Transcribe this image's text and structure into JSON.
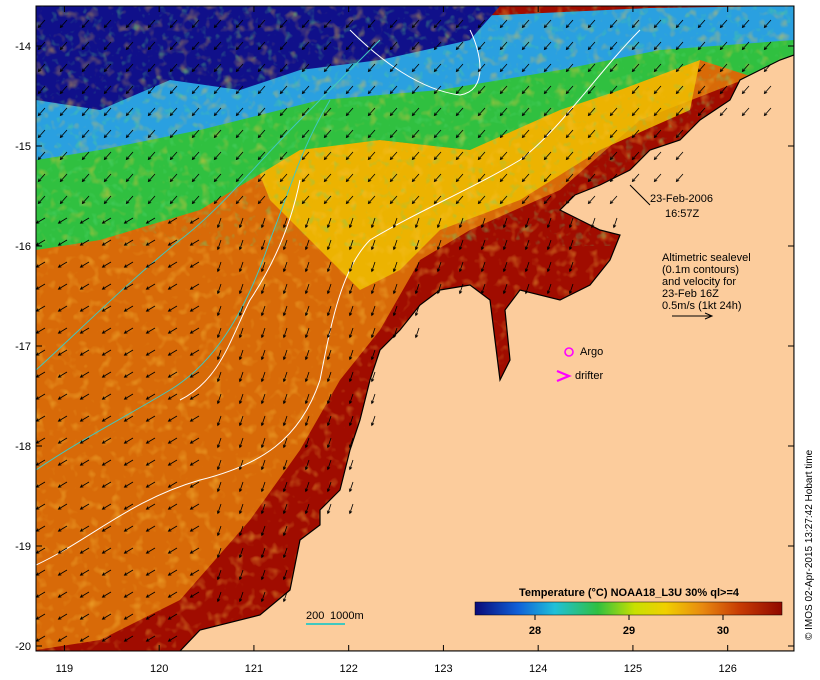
{
  "map": {
    "timestamp_date": "23-Feb-2006",
    "timestamp_time": "16:57Z",
    "altimetry_lines": [
      "Altimetric sealevel",
      "(0.1m contours)",
      "and velocity for",
      "23-Feb 16Z",
      "0.5m/s (1kt 24h)"
    ],
    "argo_label": "Argo",
    "drifter_label": "drifter",
    "depth_label": "200",
    "depth_label_2": "1000m",
    "credit": "© IMOS 02-Apr-2015 13:27:42 Hobart time",
    "lat_ticks": [
      "-14",
      "-15",
      "-16",
      "-17",
      "-18",
      "-19",
      "-20"
    ],
    "lon_ticks": [
      "119",
      "120",
      "121",
      "122",
      "123",
      "124",
      "125",
      "126"
    ],
    "extent": {
      "lon": [
        118.7,
        126.7
      ],
      "lat": [
        -20.05,
        -13.6
      ]
    }
  },
  "legend": {
    "title": "Temperature (°C) NOAA18_L3U 30% ql>=4",
    "ticks": [
      "28",
      "29",
      "30"
    ]
  },
  "colors": {
    "land": "#fccc9c",
    "warm": "#a00c00",
    "mid": "#d86a08",
    "yellow": "#f0d000",
    "green": "#30c030",
    "cool": "#2aa0e0",
    "cold": "#10108a",
    "contour_white": "#ffffff",
    "contour_cyan": "#40c8c0",
    "argo": "#ff00ff",
    "drifter": "#ff00ff"
  }
}
